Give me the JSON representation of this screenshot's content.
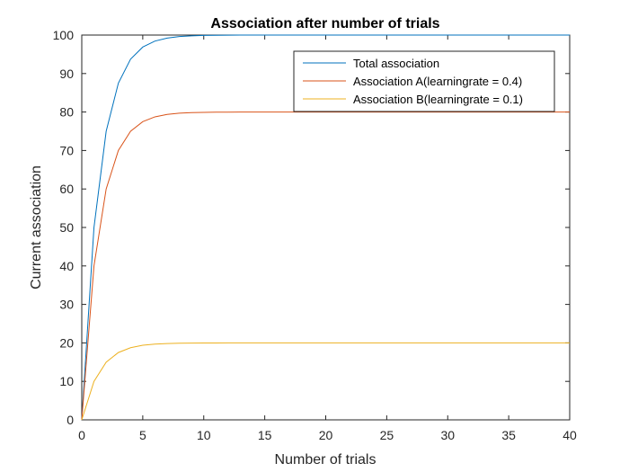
{
  "chart_data": {
    "type": "line",
    "title": "Association after number of trials",
    "xlabel": "Number of trials",
    "ylabel": "Current association",
    "xlim": [
      0,
      40
    ],
    "ylim": [
      0,
      100
    ],
    "xticks": [
      0,
      5,
      10,
      15,
      20,
      25,
      30,
      35,
      40
    ],
    "yticks": [
      0,
      10,
      20,
      30,
      40,
      50,
      60,
      70,
      80,
      90,
      100
    ],
    "grid": false,
    "legend": "top-right",
    "x": [
      0,
      1,
      2,
      3,
      4,
      5,
      6,
      7,
      8,
      9,
      10,
      11,
      12,
      13,
      14,
      15,
      16,
      17,
      18,
      19,
      20,
      21,
      22,
      23,
      24,
      25,
      26,
      27,
      28,
      29,
      30,
      31,
      32,
      33,
      34,
      35,
      36,
      37,
      38,
      39,
      40
    ],
    "series": [
      {
        "name": "Total association",
        "color": "#0072BD",
        "values": [
          0,
          50,
          75,
          87.5,
          93.75,
          96.88,
          98.44,
          99.22,
          99.61,
          99.8,
          99.9,
          99.95,
          99.98,
          99.99,
          99.99,
          100,
          100,
          100,
          100,
          100,
          100,
          100,
          100,
          100,
          100,
          100,
          100,
          100,
          100,
          100,
          100,
          100,
          100,
          100,
          100,
          100,
          100,
          100,
          100,
          100,
          100
        ]
      },
      {
        "name": "Association A(learningrate = 0.4)",
        "color": "#D95319",
        "values": [
          0,
          40,
          60,
          70,
          75,
          77.5,
          78.75,
          79.38,
          79.69,
          79.84,
          79.92,
          79.96,
          79.98,
          79.99,
          80,
          80,
          80,
          80,
          80,
          80,
          80,
          80,
          80,
          80,
          80,
          80,
          80,
          80,
          80,
          80,
          80,
          80,
          80,
          80,
          80,
          80,
          80,
          80,
          80,
          80,
          80
        ]
      },
      {
        "name": "Association B(learningrate = 0.1)",
        "color": "#EDB120",
        "values": [
          0,
          10,
          15,
          17.5,
          18.75,
          19.38,
          19.69,
          19.84,
          19.92,
          19.96,
          19.98,
          19.99,
          20,
          20,
          20,
          20,
          20,
          20,
          20,
          20,
          20,
          20,
          20,
          20,
          20,
          20,
          20,
          20,
          20,
          20,
          20,
          20,
          20,
          20,
          20,
          20,
          20,
          20,
          20,
          20,
          20
        ]
      }
    ]
  }
}
